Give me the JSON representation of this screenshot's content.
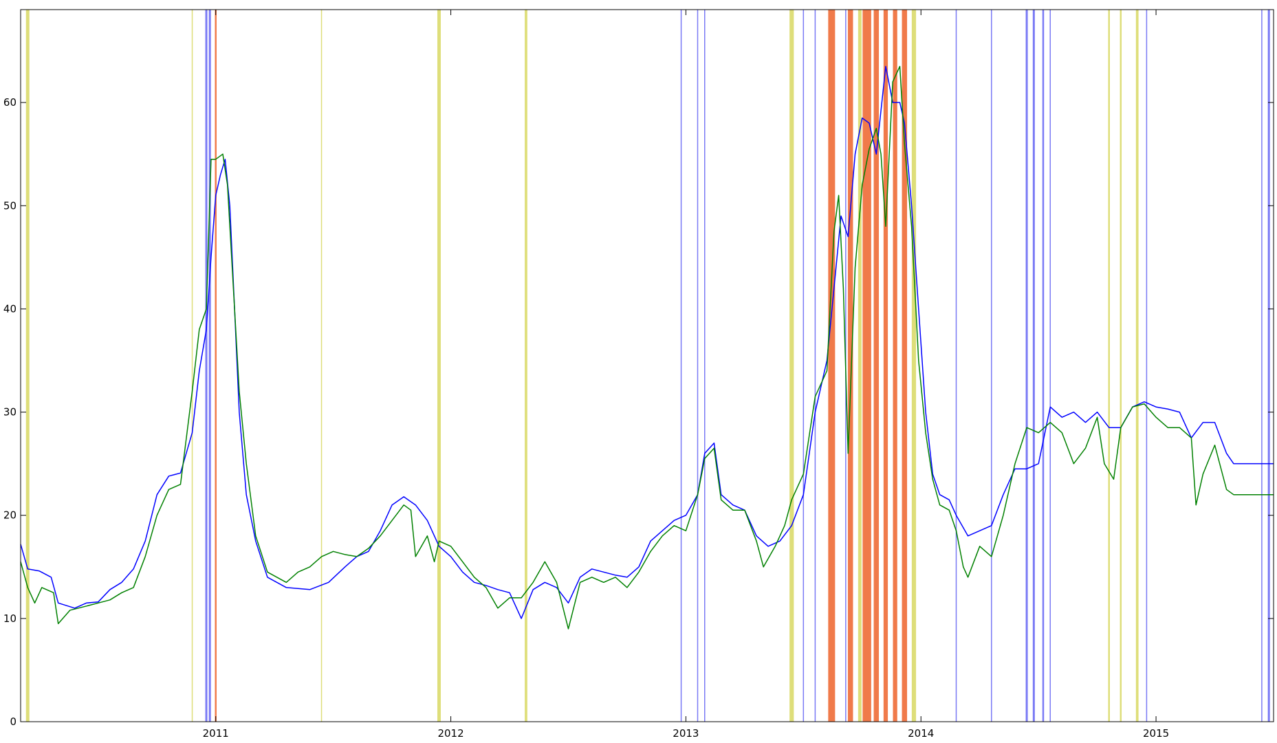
{
  "chart_data": {
    "type": "line",
    "title": "",
    "xlabel": "",
    "ylabel": "",
    "xlim": [
      2010.17,
      2015.5
    ],
    "ylim": [
      0,
      69
    ],
    "x_ticks": [
      {
        "value": 2011,
        "label": "2011"
      },
      {
        "value": 2012,
        "label": "2012"
      },
      {
        "value": 2013,
        "label": "2013"
      },
      {
        "value": 2014,
        "label": "2014"
      },
      {
        "value": 2015,
        "label": "2015"
      }
    ],
    "y_ticks": [
      {
        "value": 0,
        "label": "0"
      },
      {
        "value": 10,
        "label": "10"
      },
      {
        "value": 20,
        "label": "20"
      },
      {
        "value": 30,
        "label": "30"
      },
      {
        "value": 40,
        "label": "40"
      },
      {
        "value": 50,
        "label": "50"
      },
      {
        "value": 60,
        "label": "60"
      }
    ],
    "grid": false,
    "legend": "none",
    "series": [
      {
        "color": "#0000ff",
        "points": [
          [
            2010.17,
            17.2
          ],
          [
            2010.2,
            14.8
          ],
          [
            2010.25,
            14.6
          ],
          [
            2010.3,
            14.0
          ],
          [
            2010.33,
            11.5
          ],
          [
            2010.4,
            11.0
          ],
          [
            2010.45,
            11.5
          ],
          [
            2010.5,
            11.6
          ],
          [
            2010.55,
            12.8
          ],
          [
            2010.6,
            13.5
          ],
          [
            2010.65,
            14.8
          ],
          [
            2010.7,
            17.5
          ],
          [
            2010.75,
            22.0
          ],
          [
            2010.8,
            23.8
          ],
          [
            2010.85,
            24.1
          ],
          [
            2010.9,
            28.0
          ],
          [
            2010.93,
            34.0
          ],
          [
            2010.96,
            38.0
          ],
          [
            2010.98,
            45.0
          ],
          [
            2011.0,
            51.0
          ],
          [
            2011.02,
            53.0
          ],
          [
            2011.04,
            54.5
          ],
          [
            2011.06,
            50.0
          ],
          [
            2011.08,
            40.0
          ],
          [
            2011.1,
            30.0
          ],
          [
            2011.13,
            22.0
          ],
          [
            2011.17,
            17.5
          ],
          [
            2011.22,
            14.0
          ],
          [
            2011.3,
            13.0
          ],
          [
            2011.4,
            12.8
          ],
          [
            2011.48,
            13.5
          ],
          [
            2011.55,
            15.0
          ],
          [
            2011.6,
            16.0
          ],
          [
            2011.65,
            16.5
          ],
          [
            2011.7,
            18.5
          ],
          [
            2011.75,
            21.0
          ],
          [
            2011.8,
            21.8
          ],
          [
            2011.85,
            21.0
          ],
          [
            2011.9,
            19.5
          ],
          [
            2011.95,
            17.0
          ],
          [
            2012.0,
            16.0
          ],
          [
            2012.05,
            14.5
          ],
          [
            2012.1,
            13.5
          ],
          [
            2012.15,
            13.2
          ],
          [
            2012.2,
            12.8
          ],
          [
            2012.25,
            12.5
          ],
          [
            2012.3,
            10.0
          ],
          [
            2012.35,
            12.8
          ],
          [
            2012.4,
            13.5
          ],
          [
            2012.45,
            13.0
          ],
          [
            2012.5,
            11.5
          ],
          [
            2012.55,
            14.0
          ],
          [
            2012.6,
            14.8
          ],
          [
            2012.65,
            14.5
          ],
          [
            2012.7,
            14.2
          ],
          [
            2012.75,
            14.0
          ],
          [
            2012.8,
            15.0
          ],
          [
            2012.85,
            17.5
          ],
          [
            2012.9,
            18.5
          ],
          [
            2012.95,
            19.5
          ],
          [
            2013.0,
            20.0
          ],
          [
            2013.05,
            22.0
          ],
          [
            2013.08,
            26.0
          ],
          [
            2013.12,
            27.0
          ],
          [
            2013.15,
            22.0
          ],
          [
            2013.2,
            21.0
          ],
          [
            2013.25,
            20.5
          ],
          [
            2013.3,
            18.0
          ],
          [
            2013.35,
            17.0
          ],
          [
            2013.4,
            17.5
          ],
          [
            2013.45,
            19.0
          ],
          [
            2013.5,
            22.0
          ],
          [
            2013.55,
            30.0
          ],
          [
            2013.6,
            35.0
          ],
          [
            2013.63,
            42.0
          ],
          [
            2013.66,
            49.0
          ],
          [
            2013.69,
            47.0
          ],
          [
            2013.72,
            55.0
          ],
          [
            2013.75,
            58.5
          ],
          [
            2013.78,
            58.0
          ],
          [
            2013.81,
            55.0
          ],
          [
            2013.85,
            63.5
          ],
          [
            2013.88,
            60.0
          ],
          [
            2013.91,
            60.0
          ],
          [
            2013.93,
            58.0
          ],
          [
            2013.96,
            50.0
          ],
          [
            2013.99,
            40.0
          ],
          [
            2014.02,
            30.0
          ],
          [
            2014.05,
            24.0
          ],
          [
            2014.08,
            22.0
          ],
          [
            2014.12,
            21.5
          ],
          [
            2014.15,
            20.0
          ],
          [
            2014.2,
            18.0
          ],
          [
            2014.25,
            18.5
          ],
          [
            2014.3,
            19.0
          ],
          [
            2014.35,
            22.0
          ],
          [
            2014.4,
            24.5
          ],
          [
            2014.45,
            24.5
          ],
          [
            2014.5,
            25.0
          ],
          [
            2014.55,
            30.5
          ],
          [
            2014.6,
            29.5
          ],
          [
            2014.65,
            30.0
          ],
          [
            2014.7,
            29.0
          ],
          [
            2014.75,
            30.0
          ],
          [
            2014.8,
            28.5
          ],
          [
            2014.85,
            28.5
          ],
          [
            2014.9,
            30.5
          ],
          [
            2014.95,
            31.0
          ],
          [
            2015.0,
            30.5
          ],
          [
            2015.05,
            30.3
          ],
          [
            2015.1,
            30.0
          ],
          [
            2015.15,
            27.5
          ],
          [
            2015.2,
            29.0
          ],
          [
            2015.25,
            29.0
          ],
          [
            2015.3,
            26.0
          ],
          [
            2015.33,
            25.0
          ],
          [
            2015.4,
            25.0
          ],
          [
            2015.5,
            25.0
          ]
        ]
      },
      {
        "color": "#008000",
        "points": [
          [
            2010.17,
            15.5
          ],
          [
            2010.2,
            13.0
          ],
          [
            2010.23,
            11.5
          ],
          [
            2010.26,
            13.0
          ],
          [
            2010.31,
            12.5
          ],
          [
            2010.33,
            9.5
          ],
          [
            2010.38,
            10.8
          ],
          [
            2010.45,
            11.2
          ],
          [
            2010.5,
            11.5
          ],
          [
            2010.55,
            11.8
          ],
          [
            2010.6,
            12.5
          ],
          [
            2010.65,
            13.0
          ],
          [
            2010.7,
            16.0
          ],
          [
            2010.75,
            20.0
          ],
          [
            2010.8,
            22.5
          ],
          [
            2010.85,
            23.0
          ],
          [
            2010.9,
            32.0
          ],
          [
            2010.93,
            38.0
          ],
          [
            2010.96,
            40.0
          ],
          [
            2010.98,
            54.5
          ],
          [
            2011.0,
            54.5
          ],
          [
            2011.03,
            55.0
          ],
          [
            2011.05,
            52.0
          ],
          [
            2011.08,
            40.0
          ],
          [
            2011.1,
            32.0
          ],
          [
            2011.13,
            25.0
          ],
          [
            2011.17,
            18.0
          ],
          [
            2011.22,
            14.5
          ],
          [
            2011.3,
            13.5
          ],
          [
            2011.35,
            14.5
          ],
          [
            2011.4,
            15.0
          ],
          [
            2011.45,
            16.0
          ],
          [
            2011.5,
            16.5
          ],
          [
            2011.55,
            16.2
          ],
          [
            2011.6,
            16.0
          ],
          [
            2011.65,
            16.8
          ],
          [
            2011.7,
            18.0
          ],
          [
            2011.75,
            19.5
          ],
          [
            2011.8,
            21.0
          ],
          [
            2011.83,
            20.5
          ],
          [
            2011.85,
            16.0
          ],
          [
            2011.9,
            18.0
          ],
          [
            2011.93,
            15.5
          ],
          [
            2011.95,
            17.5
          ],
          [
            2012.0,
            17.0
          ],
          [
            2012.05,
            15.5
          ],
          [
            2012.1,
            14.0
          ],
          [
            2012.15,
            13.0
          ],
          [
            2012.2,
            11.0
          ],
          [
            2012.25,
            12.0
          ],
          [
            2012.3,
            12.0
          ],
          [
            2012.35,
            13.5
          ],
          [
            2012.4,
            15.5
          ],
          [
            2012.45,
            13.5
          ],
          [
            2012.5,
            9.0
          ],
          [
            2012.55,
            13.5
          ],
          [
            2012.6,
            14.0
          ],
          [
            2012.65,
            13.5
          ],
          [
            2012.7,
            14.0
          ],
          [
            2012.75,
            13.0
          ],
          [
            2012.8,
            14.5
          ],
          [
            2012.85,
            16.5
          ],
          [
            2012.9,
            18.0
          ],
          [
            2012.95,
            19.0
          ],
          [
            2013.0,
            18.5
          ],
          [
            2013.05,
            22.0
          ],
          [
            2013.08,
            25.5
          ],
          [
            2013.12,
            26.5
          ],
          [
            2013.15,
            21.5
          ],
          [
            2013.2,
            20.5
          ],
          [
            2013.25,
            20.5
          ],
          [
            2013.3,
            17.5
          ],
          [
            2013.33,
            15.0
          ],
          [
            2013.38,
            17.0
          ],
          [
            2013.42,
            19.0
          ],
          [
            2013.45,
            21.5
          ],
          [
            2013.5,
            24.0
          ],
          [
            2013.55,
            31.5
          ],
          [
            2013.6,
            34.0
          ],
          [
            2013.63,
            47.5
          ],
          [
            2013.65,
            51.0
          ],
          [
            2013.67,
            42.0
          ],
          [
            2013.69,
            26.0
          ],
          [
            2013.72,
            44.0
          ],
          [
            2013.75,
            52.0
          ],
          [
            2013.78,
            55.5
          ],
          [
            2013.81,
            57.5
          ],
          [
            2013.83,
            55.0
          ],
          [
            2013.85,
            48.0
          ],
          [
            2013.88,
            62.0
          ],
          [
            2013.91,
            63.5
          ],
          [
            2013.93,
            56.0
          ],
          [
            2013.96,
            48.0
          ],
          [
            2013.99,
            35.0
          ],
          [
            2014.02,
            28.0
          ],
          [
            2014.05,
            23.5
          ],
          [
            2014.08,
            21.0
          ],
          [
            2014.12,
            20.5
          ],
          [
            2014.15,
            18.5
          ],
          [
            2014.18,
            15.0
          ],
          [
            2014.2,
            14.0
          ],
          [
            2014.25,
            17.0
          ],
          [
            2014.3,
            16.0
          ],
          [
            2014.35,
            20.0
          ],
          [
            2014.4,
            25.0
          ],
          [
            2014.45,
            28.5
          ],
          [
            2014.5,
            28.0
          ],
          [
            2014.55,
            29.0
          ],
          [
            2014.6,
            28.0
          ],
          [
            2014.65,
            25.0
          ],
          [
            2014.7,
            26.5
          ],
          [
            2014.75,
            29.5
          ],
          [
            2014.78,
            25.0
          ],
          [
            2014.82,
            23.5
          ],
          [
            2014.85,
            28.5
          ],
          [
            2014.9,
            30.5
          ],
          [
            2014.95,
            30.8
          ],
          [
            2015.0,
            29.5
          ],
          [
            2015.05,
            28.5
          ],
          [
            2015.1,
            28.5
          ],
          [
            2015.15,
            27.5
          ],
          [
            2015.17,
            21.0
          ],
          [
            2015.2,
            24.0
          ],
          [
            2015.25,
            26.8
          ],
          [
            2015.3,
            22.5
          ],
          [
            2015.33,
            22.0
          ],
          [
            2015.4,
            22.0
          ],
          [
            2015.5,
            22.0
          ]
        ]
      }
    ],
    "bands": [
      {
        "x": 2010.2,
        "color": "#dede7a",
        "weight": 2.0
      },
      {
        "x": 2010.9,
        "color": "#dede7a",
        "weight": 0.6
      },
      {
        "x": 2010.96,
        "color": "#7a7af5",
        "weight": 1.2
      },
      {
        "x": 2010.975,
        "color": "#7a7af5",
        "weight": 1.2
      },
      {
        "x": 2011.0,
        "color": "#f07a4a",
        "weight": 1.0
      },
      {
        "x": 2011.45,
        "color": "#dede7a",
        "weight": 0.6
      },
      {
        "x": 2011.95,
        "color": "#dede7a",
        "weight": 2.0
      },
      {
        "x": 2012.32,
        "color": "#dede7a",
        "weight": 1.5
      },
      {
        "x": 2012.98,
        "color": "#7a7af5",
        "weight": 0.6
      },
      {
        "x": 2013.05,
        "color": "#7a7af5",
        "weight": 0.6
      },
      {
        "x": 2013.08,
        "color": "#7a7af5",
        "weight": 0.6
      },
      {
        "x": 2013.45,
        "color": "#dede7a",
        "weight": 2.5
      },
      {
        "x": 2013.5,
        "color": "#7a7af5",
        "weight": 0.6
      },
      {
        "x": 2013.55,
        "color": "#7a7af5",
        "weight": 0.6
      },
      {
        "x": 2013.62,
        "color": "#f07a4a",
        "weight": 4.0
      },
      {
        "x": 2013.68,
        "color": "#7a7af5",
        "weight": 0.6
      },
      {
        "x": 2013.7,
        "color": "#f07a4a",
        "weight": 3.0
      },
      {
        "x": 2013.74,
        "color": "#dede7a",
        "weight": 2.0
      },
      {
        "x": 2013.77,
        "color": "#f07a4a",
        "weight": 5.0
      },
      {
        "x": 2013.81,
        "color": "#f07a4a",
        "weight": 3.0
      },
      {
        "x": 2013.85,
        "color": "#f07a4a",
        "weight": 2.5
      },
      {
        "x": 2013.89,
        "color": "#f07a4a",
        "weight": 2.5
      },
      {
        "x": 2013.93,
        "color": "#f07a4a",
        "weight": 3.0
      },
      {
        "x": 2013.97,
        "color": "#dede7a",
        "weight": 2.5
      },
      {
        "x": 2014.15,
        "color": "#7a7af5",
        "weight": 0.6
      },
      {
        "x": 2014.3,
        "color": "#7a7af5",
        "weight": 0.6
      },
      {
        "x": 2014.45,
        "color": "#7a7af5",
        "weight": 1.2
      },
      {
        "x": 2014.48,
        "color": "#7a7af5",
        "weight": 1.2
      },
      {
        "x": 2014.52,
        "color": "#7a7af5",
        "weight": 1.0
      },
      {
        "x": 2014.55,
        "color": "#7a7af5",
        "weight": 0.6
      },
      {
        "x": 2014.8,
        "color": "#dede7a",
        "weight": 1.0
      },
      {
        "x": 2014.85,
        "color": "#dede7a",
        "weight": 1.0
      },
      {
        "x": 2014.92,
        "color": "#dede7a",
        "weight": 1.5
      },
      {
        "x": 2014.96,
        "color": "#7a7af5",
        "weight": 0.6
      },
      {
        "x": 2015.45,
        "color": "#7a7af5",
        "weight": 0.6
      },
      {
        "x": 2015.48,
        "color": "#7a7af5",
        "weight": 1.2
      }
    ]
  }
}
